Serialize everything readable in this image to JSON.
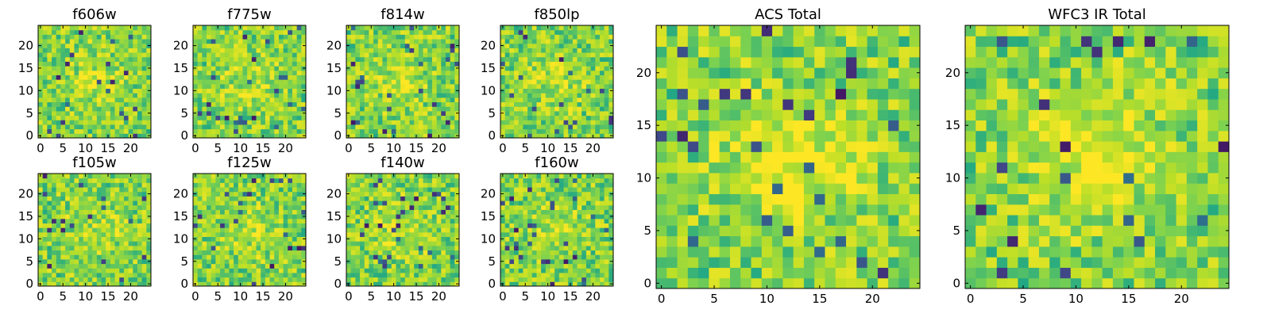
{
  "chart_data": [
    {
      "type": "heatmap",
      "title": "f606w",
      "xticks": [
        0,
        5,
        10,
        15,
        20
      ],
      "yticks": [
        0,
        5,
        10,
        15,
        20
      ],
      "xlim": [
        0,
        24
      ],
      "ylim": [
        0,
        24
      ],
      "cmap": "viridis",
      "grid": false
    },
    {
      "type": "heatmap",
      "title": "f775w",
      "xticks": [
        0,
        5,
        10,
        15,
        20
      ],
      "yticks": [
        0,
        5,
        10,
        15,
        20
      ],
      "xlim": [
        0,
        24
      ],
      "ylim": [
        0,
        24
      ],
      "cmap": "viridis",
      "grid": false
    },
    {
      "type": "heatmap",
      "title": "f814w",
      "xticks": [
        0,
        5,
        10,
        15,
        20
      ],
      "yticks": [
        0,
        5,
        10,
        15,
        20
      ],
      "xlim": [
        0,
        24
      ],
      "ylim": [
        0,
        24
      ],
      "cmap": "viridis",
      "grid": false
    },
    {
      "type": "heatmap",
      "title": "f850lp",
      "xticks": [
        0,
        5,
        10,
        15,
        20
      ],
      "yticks": [
        0,
        5,
        10,
        15,
        20
      ],
      "xlim": [
        0,
        24
      ],
      "ylim": [
        0,
        24
      ],
      "cmap": "viridis",
      "grid": false
    },
    {
      "type": "heatmap",
      "title": "f105w",
      "xticks": [
        0,
        5,
        10,
        15,
        20
      ],
      "yticks": [
        0,
        5,
        10,
        15,
        20
      ],
      "xlim": [
        0,
        24
      ],
      "ylim": [
        0,
        24
      ],
      "cmap": "viridis",
      "grid": false
    },
    {
      "type": "heatmap",
      "title": "f125w",
      "xticks": [
        0,
        5,
        10,
        15,
        20
      ],
      "yticks": [
        0,
        5,
        10,
        15,
        20
      ],
      "xlim": [
        0,
        24
      ],
      "ylim": [
        0,
        24
      ],
      "cmap": "viridis",
      "grid": false
    },
    {
      "type": "heatmap",
      "title": "f140w",
      "xticks": [
        0,
        5,
        10,
        15,
        20
      ],
      "yticks": [
        0,
        5,
        10,
        15,
        20
      ],
      "xlim": [
        0,
        24
      ],
      "ylim": [
        0,
        24
      ],
      "cmap": "viridis",
      "grid": false
    },
    {
      "type": "heatmap",
      "title": "f160w",
      "xticks": [
        0,
        5,
        10,
        15,
        20
      ],
      "yticks": [
        0,
        5,
        10,
        15,
        20
      ],
      "xlim": [
        0,
        24
      ],
      "ylim": [
        0,
        24
      ],
      "cmap": "viridis",
      "grid": false
    },
    {
      "type": "heatmap",
      "title": "ACS Total",
      "xticks": [
        0,
        5,
        10,
        15,
        20
      ],
      "yticks": [
        0,
        5,
        10,
        15,
        20
      ],
      "xlim": [
        0,
        24
      ],
      "ylim": [
        0,
        24
      ],
      "cmap": "viridis",
      "grid": false
    },
    {
      "type": "heatmap",
      "title": "WFC3 IR Total",
      "xticks": [
        0,
        5,
        10,
        15,
        20
      ],
      "yticks": [
        0,
        5,
        10,
        15,
        20
      ],
      "xlim": [
        0,
        24
      ],
      "ylim": [
        0,
        24
      ],
      "cmap": "viridis",
      "grid": false
    }
  ]
}
